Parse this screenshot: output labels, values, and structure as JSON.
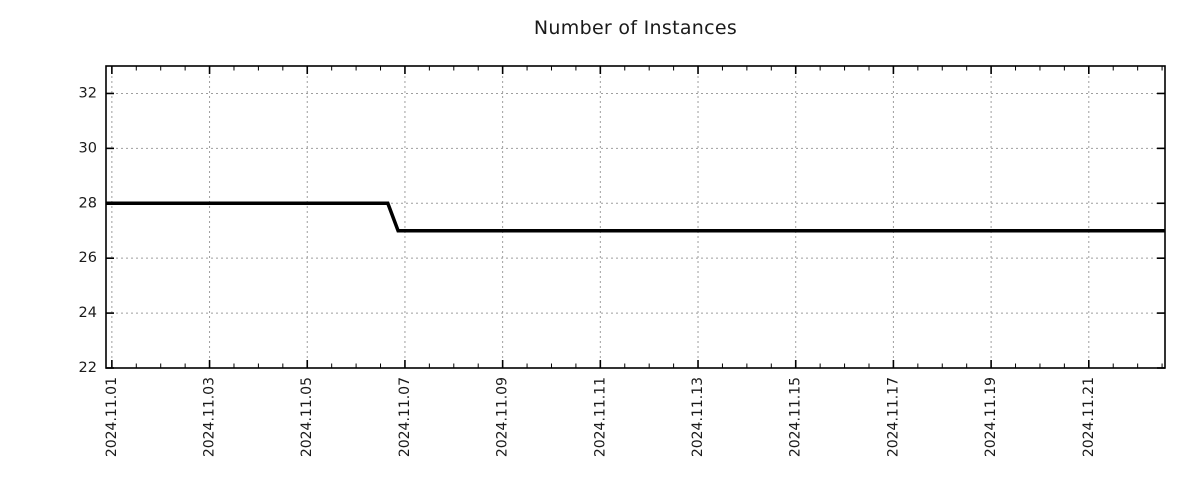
{
  "chart_data": {
    "type": "line",
    "title": "Number of Instances",
    "xlabel": "",
    "ylabel": "",
    "legend": {
      "show": false
    },
    "grid": {
      "show": true,
      "style": "dotted",
      "color": "#9e9e9e"
    },
    "x_axis": {
      "kind": "time",
      "tick_labels": [
        "2024.11.01",
        "2024.11.03",
        "2024.11.05",
        "2024.11.07",
        "2024.11.09",
        "2024.11.11",
        "2024.11.13",
        "2024.11.15",
        "2024.11.17",
        "2024.11.19",
        "2024.11.21"
      ],
      "tick_days": [
        0,
        2,
        4,
        6,
        8,
        10,
        12,
        14,
        16,
        18,
        20
      ],
      "minor_tick_interval_days": 0.5,
      "range_days": [
        -0.12,
        21.56
      ],
      "label_rotation_deg": 90
    },
    "y_axis": {
      "ticks": [
        22,
        24,
        26,
        28,
        30,
        32
      ],
      "range": [
        22,
        33
      ]
    },
    "series": [
      {
        "name": "Number of Instances",
        "color": "#000000",
        "line_width": 3.5,
        "points_day_value": [
          [
            -0.12,
            28
          ],
          [
            5.65,
            28
          ],
          [
            5.86,
            27
          ],
          [
            21.56,
            27
          ]
        ]
      }
    ]
  },
  "colors": {
    "background": "#ffffff",
    "axis": "#000000",
    "text": "#1a1a1a",
    "grid": "#9e9e9e"
  }
}
